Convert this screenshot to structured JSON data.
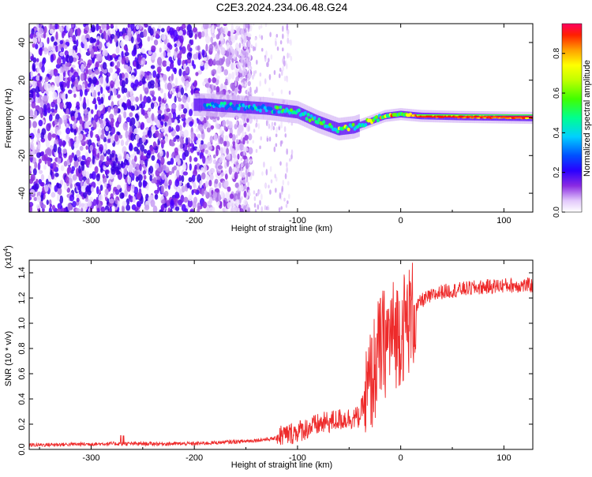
{
  "title": "C2E3.2024.234.06.48.G24",
  "chart_data": [
    {
      "type": "heatmap",
      "xlabel": "Height of straight line (km)",
      "ylabel": "Frequency (Hz)",
      "xlim": [
        -360,
        128
      ],
      "ylim": [
        -50,
        50
      ],
      "xticks": [
        -300,
        -200,
        -100,
        0,
        100
      ],
      "yticks": [
        -40,
        -20,
        0,
        20,
        40
      ],
      "colorbar": {
        "label": "Normalized spectral amplitude",
        "range": [
          0.0,
          0.95
        ],
        "ticks": [
          "0.0",
          "0.2",
          "0.4",
          "0.6",
          "0.8"
        ],
        "colormap": [
          "#ffffff",
          "#ddc8f8",
          "#8a2be2",
          "#4b00ff",
          "#0000ff",
          "#00bfff",
          "#00ff7f",
          "#7fff00",
          "#ffff00",
          "#ff8c00",
          "#ff0000"
        ]
      },
      "ridge": {
        "description_points": [
          {
            "x": -190,
            "freq": 7
          },
          {
            "x": -160,
            "freq": 6
          },
          {
            "x": -130,
            "freq": 5
          },
          {
            "x": -100,
            "freq": 3
          },
          {
            "x": -80,
            "freq": -2
          },
          {
            "x": -60,
            "freq": -6
          },
          {
            "x": -45,
            "freq": -5
          },
          {
            "x": -30,
            "freq": -2
          },
          {
            "x": -15,
            "freq": 1
          },
          {
            "x": 0,
            "freq": 2
          },
          {
            "x": 20,
            "freq": 1
          },
          {
            "x": 60,
            "freq": 0.5
          },
          {
            "x": 128,
            "freq": 0
          }
        ]
      }
    },
    {
      "type": "line",
      "xlabel": "Height of straight line (km)",
      "ylabel": "SNR (10 * v/v)",
      "yscale_label": "(x10",
      "yscale_exp": "4",
      "yscale_close": ")",
      "xlim": [
        -360,
        128
      ],
      "ylim": [
        0,
        1.5
      ],
      "xticks": [
        -300,
        -200,
        -100,
        0,
        100
      ],
      "yticks": [
        "0.0",
        "0.2",
        "0.4",
        "0.6",
        "0.8",
        "1.0",
        "1.2",
        "1.4"
      ],
      "line_color": "#ee2a2a",
      "envelope": [
        {
          "x": -360,
          "y": 0.02
        },
        {
          "x": -280,
          "y": 0.03
        },
        {
          "x": -200,
          "y": 0.03
        },
        {
          "x": -150,
          "y": 0.05
        },
        {
          "x": -110,
          "y": 0.08
        },
        {
          "x": -80,
          "y": 0.16
        },
        {
          "x": -60,
          "y": 0.2
        },
        {
          "x": -40,
          "y": 0.22
        },
        {
          "x": -30,
          "y": 0.5
        },
        {
          "x": -20,
          "y": 0.8
        },
        {
          "x": -10,
          "y": 0.9
        },
        {
          "x": 0,
          "y": 0.95
        },
        {
          "x": 10,
          "y": 1.05
        },
        {
          "x": 20,
          "y": 1.18
        },
        {
          "x": 40,
          "y": 1.25
        },
        {
          "x": 70,
          "y": 1.28
        },
        {
          "x": 100,
          "y": 1.3
        },
        {
          "x": 128,
          "y": 1.3
        }
      ]
    }
  ]
}
